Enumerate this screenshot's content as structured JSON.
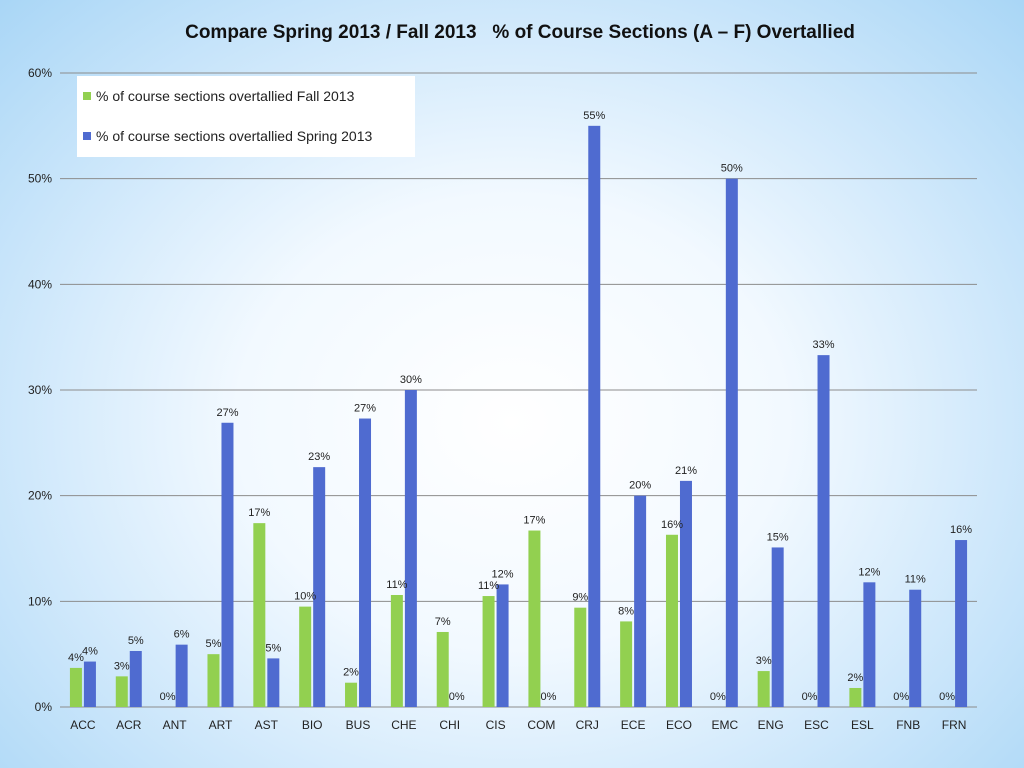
{
  "colors": {
    "fall": "#92d050",
    "spring": "#4f6bd0",
    "grid": "#8c8c8c"
  },
  "chart_data": {
    "type": "bar",
    "title": "Compare Spring 2013 / Fall 2013   % of Course Sections (A – F) Overtallied",
    "xlabel": "",
    "ylabel": "",
    "ylim": [
      0,
      60
    ],
    "y_ticks": [
      "0%",
      "10%",
      "20%",
      "30%",
      "40%",
      "50%",
      "60%"
    ],
    "grid": true,
    "legend_position": "top-left",
    "categories": [
      "ACC",
      "ACR",
      "ANT",
      "ART",
      "AST",
      "BIO",
      "BUS",
      "CHE",
      "CHI",
      "CIS",
      "COM",
      "CRJ",
      "ECE",
      "ECO",
      "EMC",
      "ENG",
      "ESC",
      "ESL",
      "FNB",
      "FRN"
    ],
    "series": [
      {
        "name": "% of course sections overtallied Fall 2013",
        "values": [
          3.7,
          2.9,
          0,
          5.0,
          17.4,
          9.5,
          2.3,
          10.6,
          7.1,
          10.5,
          16.7,
          9.4,
          8.1,
          16.3,
          0,
          3.4,
          0,
          1.8,
          0,
          0
        ],
        "labels": [
          "4%",
          "3%",
          "0%",
          "5%",
          "17%",
          "10%",
          "2%",
          "11%",
          "7%",
          "11%",
          "17%",
          "9%",
          "8%",
          "16%",
          "0%",
          "3%",
          "0%",
          "2%",
          "0%",
          "0%"
        ]
      },
      {
        "name": "% of course sections overtallied Spring 2013",
        "values": [
          4.3,
          5.3,
          5.9,
          26.9,
          4.6,
          22.7,
          27.3,
          30.0,
          0,
          11.6,
          0,
          55.0,
          20.0,
          21.4,
          50.0,
          15.1,
          33.3,
          11.8,
          11.1,
          15.8
        ],
        "labels": [
          "4%",
          "5%",
          "6%",
          "27%",
          "5%",
          "23%",
          "27%",
          "30%",
          "0%",
          "12%",
          "0%",
          "55%",
          "20%",
          "21%",
          "50%",
          "15%",
          "33%",
          "12%",
          "11%",
          "16%"
        ]
      }
    ]
  }
}
